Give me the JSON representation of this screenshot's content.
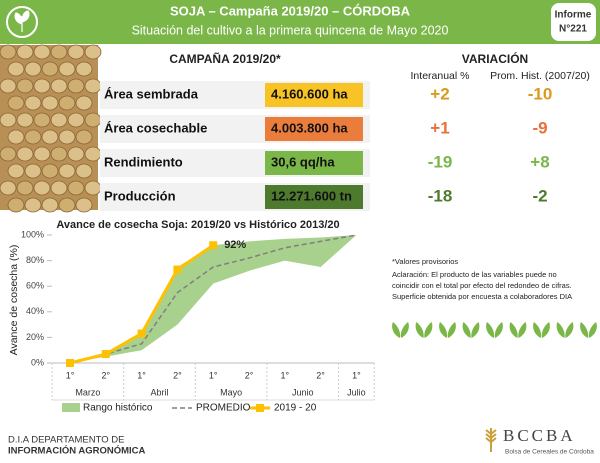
{
  "header": {
    "title": "SOJA – Campaña 2019/20 – CÓRDOBA",
    "subtitle": "Situación del cultivo a la primera quincena de Mayo 2020",
    "report": "Informe",
    "report_number": "N°221"
  },
  "campaign": {
    "title": "CAMPAÑA 2019/20*",
    "rows": [
      {
        "label": "Área sembrada",
        "value": "4.160.600 ha",
        "color": "#f7c325"
      },
      {
        "label": "Área cosechable",
        "value": "4.003.800 ha",
        "color": "#eb7d3c"
      },
      {
        "label": "Rendimiento",
        "value": "30,6 qq/ha",
        "color": "#7ab648"
      },
      {
        "label": "Producción",
        "value": "12.271.600 tn",
        "color": "#4e7a2e"
      }
    ]
  },
  "variation": {
    "title": "VARIACIÓN",
    "columns": [
      "Interanual %",
      "Prom. Hist. (2007/20)"
    ],
    "rows": [
      {
        "values": [
          "+2",
          "-10"
        ],
        "color": "#d99a1e"
      },
      {
        "values": [
          "+1",
          "-9"
        ],
        "color": "#e8703a"
      },
      {
        "values": [
          "-19",
          "+8"
        ],
        "color": "#7ab648"
      },
      {
        "values": [
          "-18",
          "-2"
        ],
        "color": "#4e7a2e"
      }
    ]
  },
  "chart_data": {
    "type": "line",
    "title": "Avance de cosecha Soja: 2019/20 vs Histórico 2013/20",
    "y_label": "Avance de cosecha (%)",
    "categories": [
      "1°",
      "2°",
      "1°",
      "2°",
      "1°",
      "2°",
      "1°",
      "2°",
      "1°"
    ],
    "months": [
      "Marzo",
      "Abril",
      "Mayo",
      "Junio",
      "Julio"
    ],
    "ylim": [
      0,
      100
    ],
    "yticks": [
      {
        "value": 0,
        "label": "0%"
      },
      {
        "value": 20,
        "label": "20%"
      },
      {
        "value": 40,
        "label": "40%"
      },
      {
        "value": 60,
        "label": "60%"
      },
      {
        "value": 80,
        "label": "80%"
      },
      {
        "value": 100,
        "label": "100%"
      }
    ],
    "range": {
      "name": "Rango histórico",
      "color": "#a9d18e",
      "low": [
        0,
        5,
        10,
        30,
        62,
        72,
        80,
        75,
        100
      ],
      "high": [
        0,
        8,
        22,
        75,
        92,
        95,
        97,
        98,
        100
      ]
    },
    "series": [
      {
        "name": "PROMEDIO",
        "color": "#7f7f7f",
        "dashed": true,
        "values": [
          0,
          7,
          15,
          55,
          75,
          82,
          90,
          95,
          100
        ]
      },
      {
        "name": "2019 - 20",
        "color": "#ffc000",
        "dashed": false,
        "values": [
          0,
          7,
          23,
          73,
          92,
          null,
          null,
          null,
          null
        ]
      }
    ],
    "annotation": "92%"
  },
  "notes": [
    "*Valores provisorios",
    "Aclaración: El producto de las variables puede no",
    "coincidir con el total por efecto del redondeo de cifras.",
    "Superficie obtenida por encuesta a colaboradores DIA"
  ],
  "footer": {
    "department": [
      "D.I.A DEPARTAMENTO DE",
      "INFORMACIÓN AGRONÓMICA"
    ],
    "logo": "BCCBA",
    "logo_subtitle": "Bolsa de Cereales de Córdoba"
  }
}
